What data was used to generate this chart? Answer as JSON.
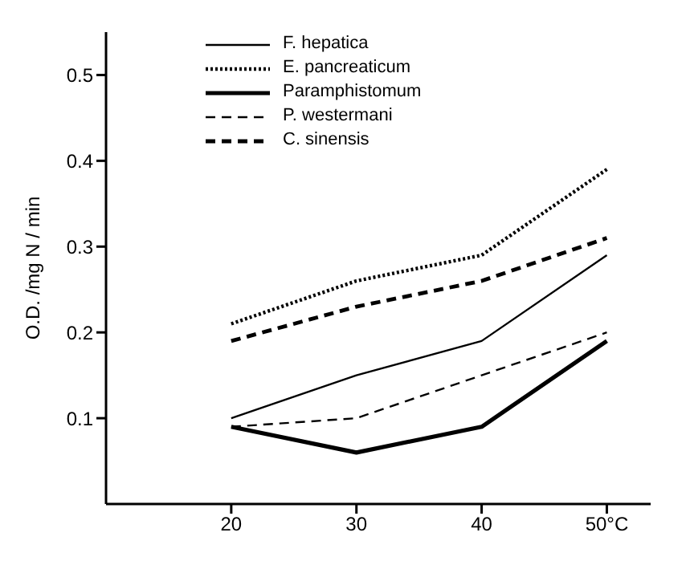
{
  "chart_data": {
    "type": "line",
    "ylabel": "O.D. /mg N / min",
    "x": [
      20,
      30,
      40,
      50
    ],
    "xlim": [
      10,
      53.5
    ],
    "xticks": [
      20,
      30,
      40,
      {
        "value": 50,
        "label": "50°C"
      }
    ],
    "ylim": [
      0,
      0.55
    ],
    "yticks": [
      0.1,
      0.2,
      0.3,
      0.4,
      0.5
    ],
    "grid": false,
    "legend": "top left",
    "marker": "none",
    "series": [
      {
        "name": "F. hepatica",
        "color": "#000000",
        "line_style": "solid",
        "values": [
          0.1,
          0.15,
          0.19,
          0.29
        ]
      },
      {
        "name": "E. pancreaticum",
        "color": "#000000",
        "line_style": "dotted",
        "values": [
          0.21,
          0.26,
          0.29,
          0.39
        ]
      },
      {
        "name": "Paramphistomum",
        "color": "#000000",
        "line_style": "solid",
        "values": [
          0.09,
          0.06,
          0.09,
          0.19
        ]
      },
      {
        "name": "P. westermani",
        "color": "#000000",
        "line_style": "dashed",
        "values": [
          0.09,
          0.1,
          0.15,
          0.2
        ]
      },
      {
        "name": "C. sinensis",
        "color": "#000000",
        "line_style": "dashed",
        "values": [
          0.19,
          0.23,
          0.26,
          0.31
        ]
      }
    ]
  }
}
